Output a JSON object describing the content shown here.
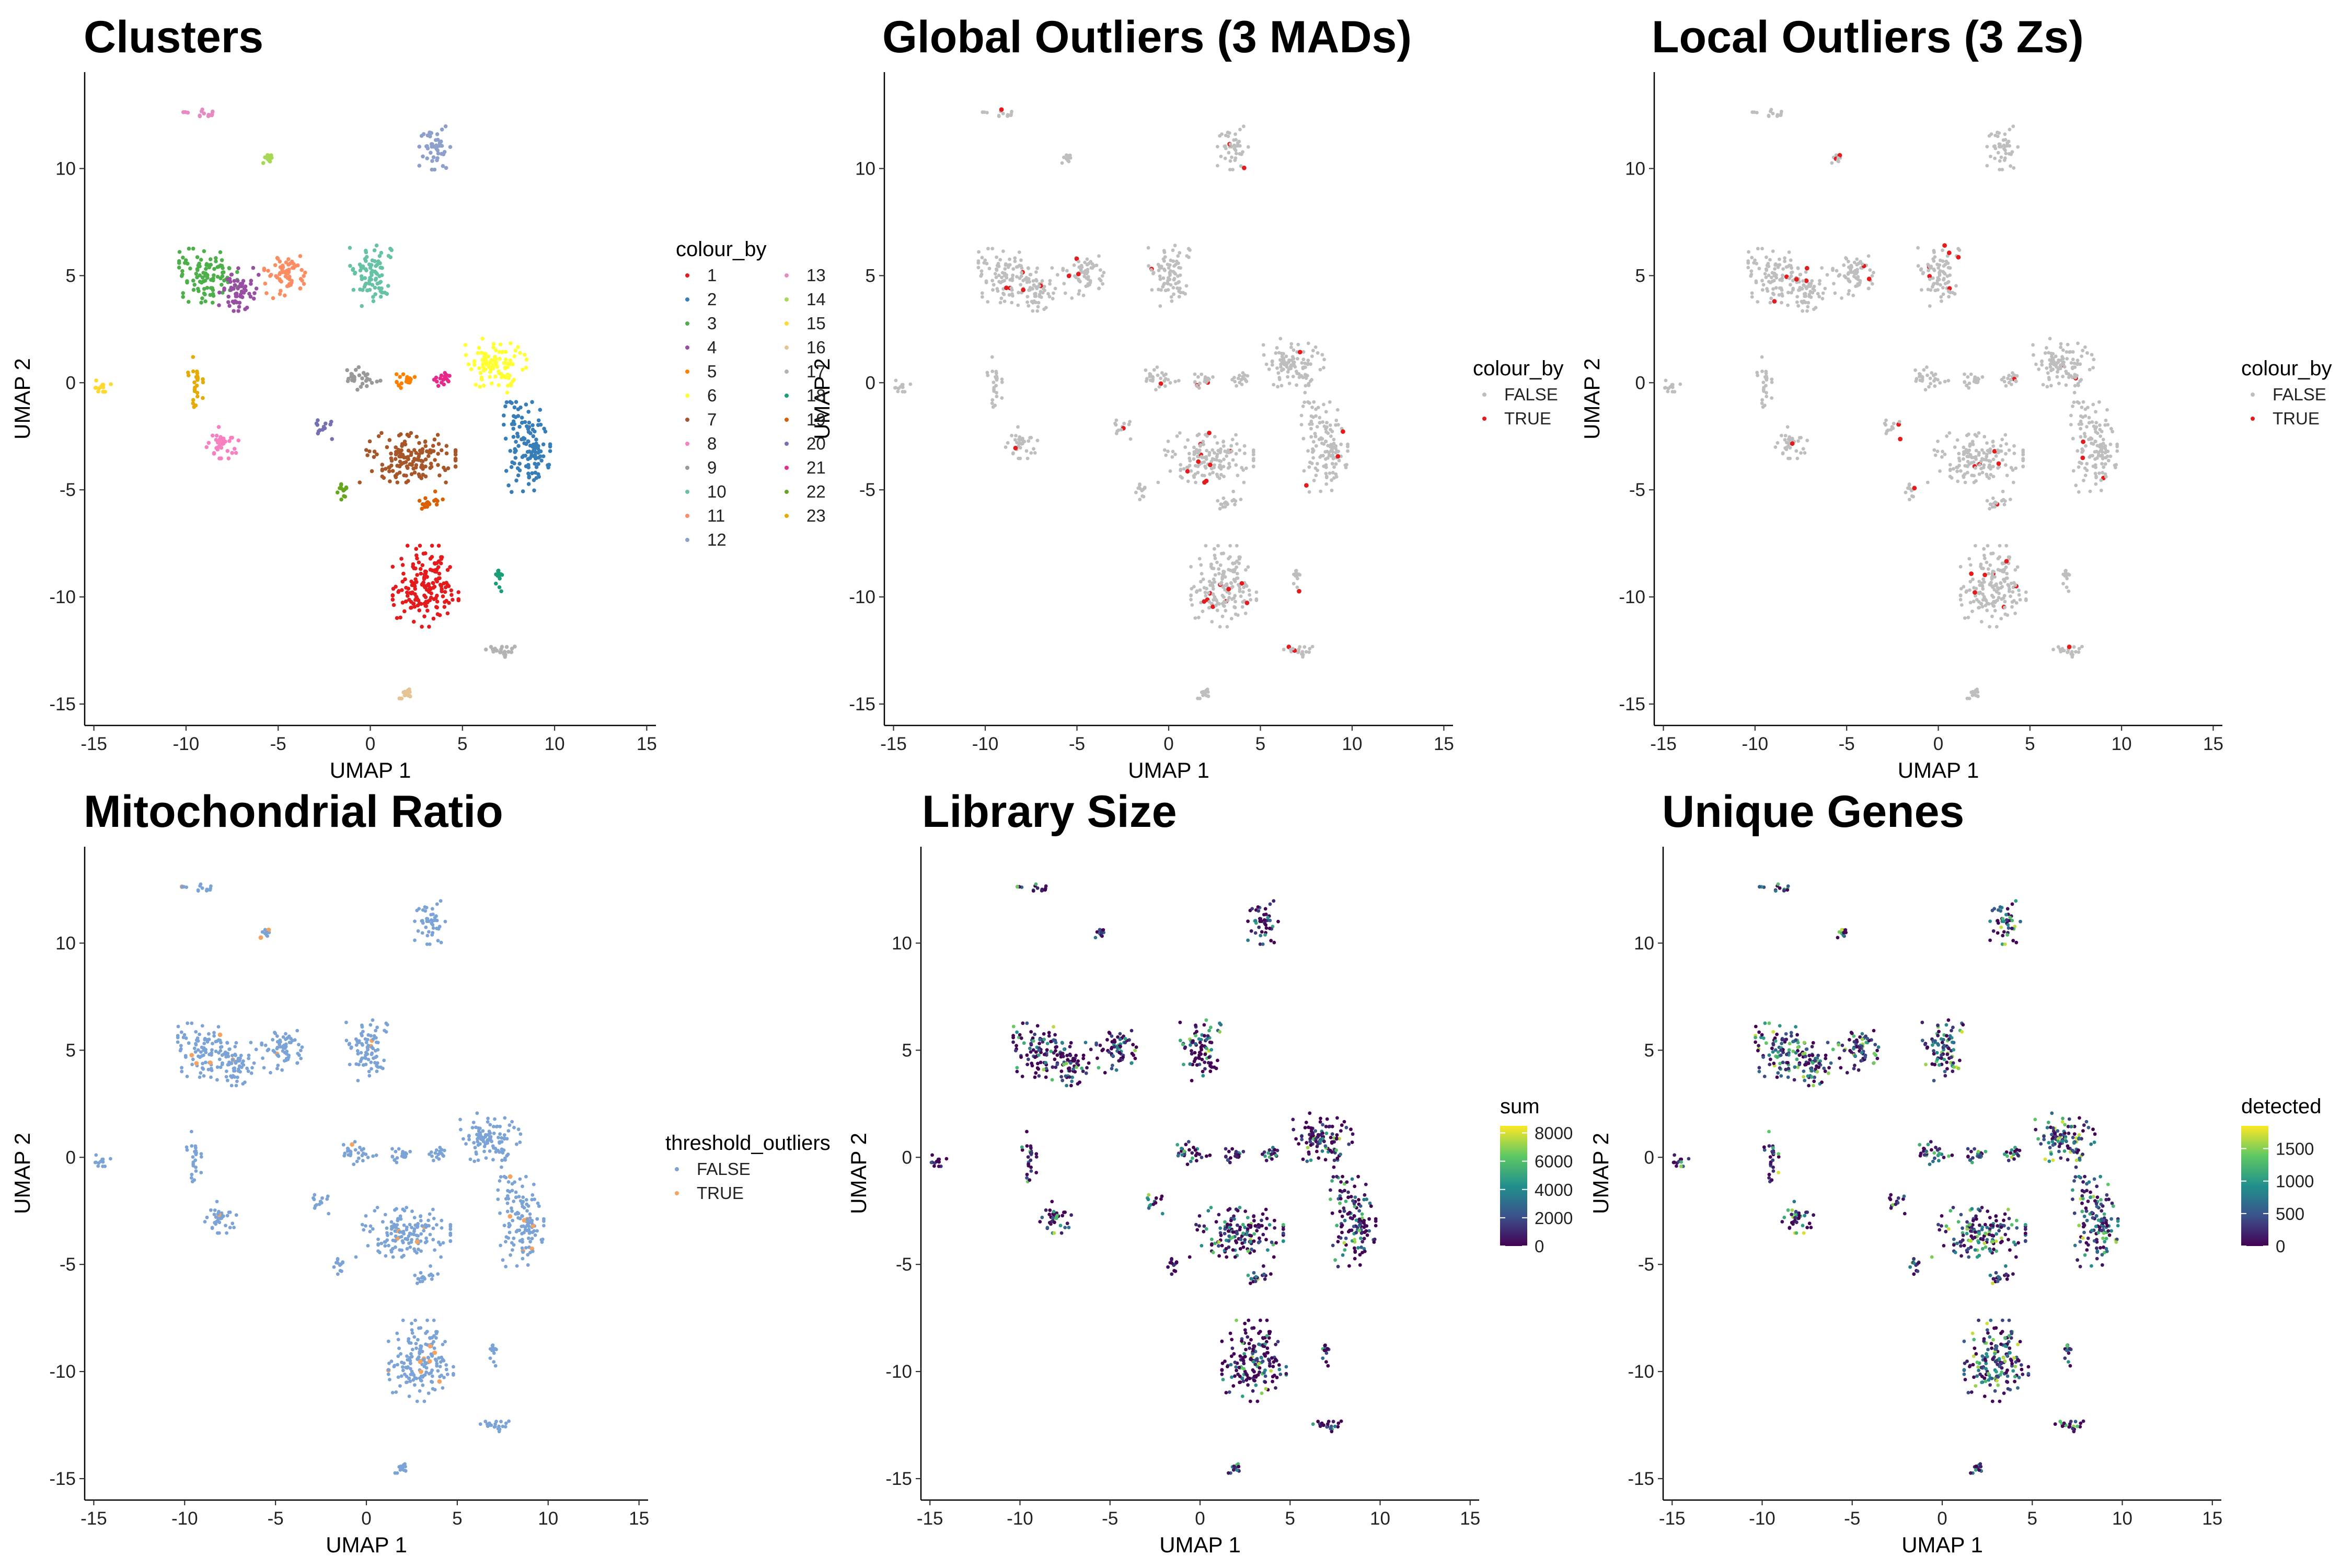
{
  "figure": {
    "panels": [
      {
        "id": "clusters",
        "title": "Clusters"
      },
      {
        "id": "global",
        "title": "Global Outliers (3 MADs)"
      },
      {
        "id": "local",
        "title": "Local Outliers (3 Zs)"
      },
      {
        "id": "mito",
        "title": "Mitochondrial Ratio"
      },
      {
        "id": "libsize",
        "title": "Library Size"
      },
      {
        "id": "genes",
        "title": "Unique Genes"
      }
    ]
  },
  "chart_data": [
    {
      "type": "scatter",
      "title": "Clusters",
      "xlabel": "UMAP 1",
      "ylabel": "UMAP 2",
      "xlim": [
        -15.5,
        15.5
      ],
      "ylim": [
        -16,
        14.5
      ],
      "xticks": [
        "-15",
        "-10",
        "-5",
        "0",
        "5",
        "10",
        "15"
      ],
      "yticks": [
        "-15",
        "-10",
        "-5",
        "0",
        "5",
        "10"
      ],
      "grid": false,
      "legend": {
        "title": "colour_by",
        "placement": "right",
        "entries": [
          "1",
          "2",
          "3",
          "4",
          "5",
          "6",
          "7",
          "8",
          "9",
          "10",
          "11",
          "12",
          "13",
          "14",
          "15",
          "16",
          "17",
          "18",
          "19",
          "20",
          "21",
          "22",
          "23"
        ],
        "colors": [
          "#E41A1C",
          "#377EB8",
          "#4DAF4A",
          "#984EA3",
          "#FF7F00",
          "#FFFF33",
          "#A65628",
          "#F781BF",
          "#999999",
          "#66C2A5",
          "#FC8D62",
          "#8DA0CB",
          "#E78AC3",
          "#A6D854",
          "#FFD92F",
          "#E5C494",
          "#B3B3B3",
          "#1B9E77",
          "#D95F02",
          "#7570B3",
          "#E7298A",
          "#66A61E",
          "#E6AB02"
        ]
      }
    },
    {
      "type": "scatter",
      "title": "Global Outliers (3 MADs)",
      "xlabel": "UMAP 1",
      "ylabel": "UMAP 2",
      "xlim": [
        -15.5,
        15.5
      ],
      "ylim": [
        -16,
        14.5
      ],
      "xticks": [
        "-15",
        "-10",
        "-5",
        "0",
        "5",
        "10",
        "15"
      ],
      "yticks": [
        "-15",
        "-10",
        "-5",
        "0",
        "5",
        "10"
      ],
      "legend": {
        "title": "colour_by",
        "placement": "right",
        "entries": [
          "FALSE",
          "TRUE"
        ],
        "colors": [
          "#BEBEBE",
          "#E41A1C"
        ]
      }
    },
    {
      "type": "scatter",
      "title": "Local Outliers (3 Zs)",
      "xlabel": "UMAP 1",
      "ylabel": "UMAP 2",
      "xlim": [
        -15.5,
        15.5
      ],
      "ylim": [
        -16,
        14.5
      ],
      "xticks": [
        "-15",
        "-10",
        "-5",
        "0",
        "5",
        "10",
        "15"
      ],
      "yticks": [
        "-15",
        "-10",
        "-5",
        "0",
        "5",
        "10"
      ],
      "legend": {
        "title": "colour_by",
        "placement": "right",
        "entries": [
          "FALSE",
          "TRUE"
        ],
        "colors": [
          "#BEBEBE",
          "#E41A1C"
        ]
      }
    },
    {
      "type": "scatter",
      "title": "Mitochondrial Ratio",
      "xlabel": "UMAP 1",
      "ylabel": "UMAP 2",
      "xlim": [
        -15.5,
        15.5
      ],
      "ylim": [
        -16,
        14.5
      ],
      "xticks": [
        "-15",
        "-10",
        "-5",
        "0",
        "5",
        "10",
        "15"
      ],
      "yticks": [
        "-15",
        "-10",
        "-5",
        "0",
        "5",
        "10"
      ],
      "legend": {
        "title": "threshold_outliers",
        "placement": "right",
        "entries": [
          "FALSE",
          "TRUE"
        ],
        "colors": [
          "#7BA3D6",
          "#F4A460"
        ]
      }
    },
    {
      "type": "scatter",
      "title": "Library Size",
      "xlabel": "UMAP 1",
      "ylabel": "UMAP 2",
      "xlim": [
        -15.5,
        15.5
      ],
      "ylim": [
        -16,
        14.5
      ],
      "xticks": [
        "-15",
        "-10",
        "-5",
        "0",
        "5",
        "10",
        "15"
      ],
      "yticks": [
        "-15",
        "-10",
        "-5",
        "0",
        "5",
        "10"
      ],
      "colorbar": {
        "title": "sum",
        "placement": "right",
        "ticks": [
          "8000",
          "6000",
          "4000",
          "2000",
          "0"
        ],
        "range": [
          0,
          8500
        ],
        "palette": "viridis"
      }
    },
    {
      "type": "scatter",
      "title": "Unique Genes",
      "xlabel": "UMAP 1",
      "ylabel": "UMAP 2",
      "xlim": [
        -15.5,
        15.5
      ],
      "ylim": [
        -16,
        14.5
      ],
      "xticks": [
        "-15",
        "-10",
        "-5",
        "0",
        "5",
        "10",
        "15"
      ],
      "yticks": [
        "-15",
        "-10",
        "-5",
        "0",
        "5",
        "10"
      ],
      "colorbar": {
        "title": "detected",
        "placement": "right",
        "ticks": [
          "1500",
          "1000",
          "500",
          "0"
        ],
        "range": [
          0,
          1850
        ],
        "palette": "viridis"
      }
    }
  ],
  "clusters_layout": [
    {
      "c": 1,
      "x": 3.0,
      "y": -9.5,
      "rx": 1.7,
      "ry": 1.8
    },
    {
      "c": 2,
      "x": 8.5,
      "y": -3.0,
      "rx": 1.2,
      "ry": 2.0
    },
    {
      "c": 3,
      "x": -8.8,
      "y": 5.0,
      "rx": 1.5,
      "ry": 1.2
    },
    {
      "c": 4,
      "x": -7.2,
      "y": 4.4,
      "rx": 1.1,
      "ry": 1.0
    },
    {
      "c": 5,
      "x": 2.0,
      "y": 0.0,
      "rx": 0.7,
      "ry": 0.5
    },
    {
      "c": 6,
      "x": 6.8,
      "y": 0.8,
      "rx": 1.6,
      "ry": 1.2
    },
    {
      "c": 7,
      "x": 2.0,
      "y": -3.5,
      "rx": 2.5,
      "ry": 1.1
    },
    {
      "c": 8,
      "x": -8.0,
      "y": -2.8,
      "rx": 0.9,
      "ry": 0.7
    },
    {
      "c": 9,
      "x": -0.5,
      "y": 0.2,
      "rx": 1.0,
      "ry": 0.5
    },
    {
      "c": 10,
      "x": 0.0,
      "y": 5.0,
      "rx": 1.1,
      "ry": 1.4
    },
    {
      "c": 11,
      "x": -4.5,
      "y": 5.0,
      "rx": 1.2,
      "ry": 1.0
    },
    {
      "c": 12,
      "x": 3.5,
      "y": 11.0,
      "rx": 0.8,
      "ry": 1.0
    },
    {
      "c": 13,
      "x": -9.2,
      "y": 12.6,
      "rx": 0.9,
      "ry": 0.3
    },
    {
      "c": 14,
      "x": -5.5,
      "y": 10.5,
      "rx": 0.3,
      "ry": 0.3
    },
    {
      "c": 15,
      "x": -14.5,
      "y": 0.0,
      "rx": 0.4,
      "ry": 0.4
    },
    {
      "c": 16,
      "x": 2.0,
      "y": -14.5,
      "rx": 0.4,
      "ry": 0.3
    },
    {
      "c": 17,
      "x": 7.0,
      "y": -12.5,
      "rx": 0.9,
      "ry": 0.4
    },
    {
      "c": 18,
      "x": 7.0,
      "y": -9.0,
      "rx": 0.3,
      "ry": 0.7
    },
    {
      "c": 19,
      "x": 3.3,
      "y": -5.6,
      "rx": 0.6,
      "ry": 0.5
    },
    {
      "c": 20,
      "x": -2.5,
      "y": -2.0,
      "rx": 0.4,
      "ry": 0.6
    },
    {
      "c": 21,
      "x": 3.8,
      "y": 0.2,
      "rx": 0.6,
      "ry": 0.5
    },
    {
      "c": 22,
      "x": -1.5,
      "y": -5.0,
      "rx": 0.4,
      "ry": 0.6
    },
    {
      "c": 23,
      "x": -9.5,
      "y": 0.0,
      "rx": 0.4,
      "ry": 1.2
    }
  ]
}
